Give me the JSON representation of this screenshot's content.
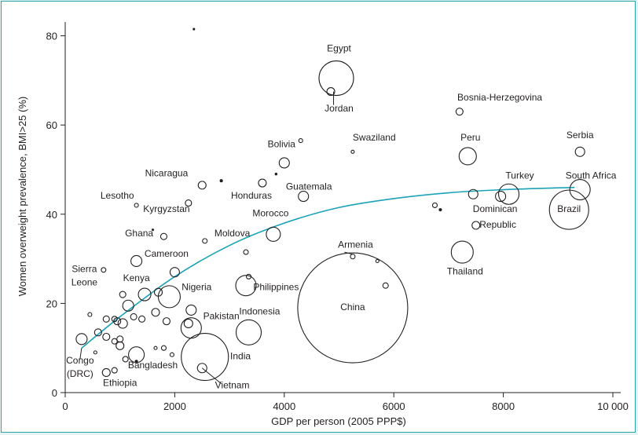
{
  "chart_data": {
    "type": "scatter",
    "title": "",
    "xlabel": "GDP per person (2005 PPP$)",
    "ylabel": "Women overweight prevalence, BMI>25 (%)",
    "xlim": [
      0,
      10000
    ],
    "ylim": [
      0,
      85
    ],
    "xticks": [
      0,
      2000,
      4000,
      6000,
      8000,
      10000
    ],
    "xtick_labels": [
      "0",
      "2000",
      "4000",
      "6000",
      "8000",
      "10 000"
    ],
    "yticks": [
      0,
      20,
      40,
      60,
      80
    ],
    "ytick_labels": [
      "0",
      "20",
      "40",
      "60",
      "80"
    ],
    "marker": "bubble (area proportional to population)",
    "colors": {
      "points": "#231f20",
      "trend": "#1aa3b8",
      "frame": "#2aa6a8"
    },
    "trend_line": {
      "x": [
        300,
        1000,
        2000,
        3000,
        4000,
        5000,
        6000,
        7000,
        8000,
        9300
      ],
      "y": [
        10,
        17,
        26,
        33,
        38,
        41.5,
        43.5,
        44.8,
        45.5,
        46
      ]
    },
    "points": [
      {
        "name": "Egypt",
        "x": 4950,
        "y": 70.5,
        "r": 22
      },
      {
        "name": "Jordan",
        "x": 4850,
        "y": 67.5,
        "r": 5
      },
      {
        "name": "Bosnia-Herzegovina",
        "x": 7200,
        "y": 63,
        "r": 4.5
      },
      {
        "name": "Peru",
        "x": 7350,
        "y": 53,
        "r": 11
      },
      {
        "name": "Serbia",
        "x": 9400,
        "y": 54,
        "r": 6
      },
      {
        "name": "Swaziland",
        "x": 5250,
        "y": 54,
        "r": 2
      },
      {
        "name": "Bolivia",
        "x": 4000,
        "y": 51.5,
        "r": 6.5
      },
      {
        "name": "Nicaragua",
        "x": 2500,
        "y": 46.5,
        "r": 5
      },
      {
        "name": "Honduras",
        "x": 3600,
        "y": 47,
        "r": 5
      },
      {
        "name": "Guatemala",
        "x": 4350,
        "y": 44,
        "r": 6.5
      },
      {
        "name": "Lesotho",
        "x": 1300,
        "y": 42,
        "r": 2.5
      },
      {
        "name": "Turkey",
        "x": 8100,
        "y": 44.5,
        "r": 13
      },
      {
        "name": "South Africa",
        "x": 9400,
        "y": 45.5,
        "r": 13
      },
      {
        "name": "Brazil",
        "x": 9200,
        "y": 41,
        "r": 25
      },
      {
        "name": "Dominican Republic",
        "x": 7500,
        "y": 37.5,
        "r": 5
      },
      {
        "name": "Kyrgyzstan",
        "x": 1800,
        "y": 35,
        "r": 4
      },
      {
        "name": "Moldova",
        "x": 2550,
        "y": 34,
        "r": 3
      },
      {
        "name": "Morocco",
        "x": 3800,
        "y": 35.5,
        "r": 9
      },
      {
        "name": "Armenia",
        "x": 5250,
        "y": 30.5,
        "r": 3
      },
      {
        "name": "Thailand",
        "x": 7250,
        "y": 31.5,
        "r": 14
      },
      {
        "name": "Ghana",
        "x": 1300,
        "y": 29.5,
        "r": 7
      },
      {
        "name": "Cameroon",
        "x": 2000,
        "y": 27,
        "r": 6
      },
      {
        "name": "Sierra Leone",
        "x": 700,
        "y": 27.5,
        "r": 3
      },
      {
        "name": "Philippines",
        "x": 3300,
        "y": 24,
        "r": 13
      },
      {
        "name": "Kenya",
        "x": 1450,
        "y": 22,
        "r": 8
      },
      {
        "name": "Nigeria",
        "x": 1900,
        "y": 21.5,
        "r": 14
      },
      {
        "name": "China",
        "x": 5250,
        "y": 19,
        "r": 70
      },
      {
        "name": "Pakistan",
        "x": 2300,
        "y": 14.5,
        "r": 13
      },
      {
        "name": "Indonesia",
        "x": 3350,
        "y": 13.5,
        "r": 16
      },
      {
        "name": "India",
        "x": 2550,
        "y": 8,
        "r": 30
      },
      {
        "name": "Vietnam",
        "x": 2500,
        "y": 5.5,
        "r": 6
      },
      {
        "name": "Bangladesh",
        "x": 1300,
        "y": 8.5,
        "r": 10
      },
      {
        "name": "Congo (DRC)",
        "x": 300,
        "y": 12,
        "r": 7
      },
      {
        "name": "Ethiopia",
        "x": 750,
        "y": 4.5,
        "r": 5
      },
      {
        "name": "",
        "x": 4300,
        "y": 56.5,
        "r": 2.5
      },
      {
        "name": "",
        "x": 2850,
        "y": 47.5,
        "r": 1.5
      },
      {
        "name": "",
        "x": 3850,
        "y": 49,
        "r": 1.2
      },
      {
        "name": "",
        "x": 2250,
        "y": 42.5,
        "r": 4
      },
      {
        "name": "",
        "x": 6750,
        "y": 42,
        "r": 3
      },
      {
        "name": "",
        "x": 7450,
        "y": 44.5,
        "r": 6
      },
      {
        "name": "",
        "x": 7950,
        "y": 44,
        "r": 6.5
      },
      {
        "name": "",
        "x": 6850,
        "y": 41,
        "r": 1.5
      },
      {
        "name": "",
        "x": 1600,
        "y": 36.5,
        "r": 1
      },
      {
        "name": "",
        "x": 3300,
        "y": 31.5,
        "r": 3
      },
      {
        "name": "",
        "x": 5700,
        "y": 29.5,
        "r": 2
      },
      {
        "name": "",
        "x": 5850,
        "y": 24,
        "r": 3.5
      },
      {
        "name": "",
        "x": 3350,
        "y": 26,
        "r": 3
      },
      {
        "name": "",
        "x": 1700,
        "y": 22.5,
        "r": 5
      },
      {
        "name": "",
        "x": 1050,
        "y": 22,
        "r": 4
      },
      {
        "name": "",
        "x": 1150,
        "y": 19.5,
        "r": 7
      },
      {
        "name": "",
        "x": 1650,
        "y": 18,
        "r": 5
      },
      {
        "name": "",
        "x": 2300,
        "y": 18.5,
        "r": 6.5
      },
      {
        "name": "",
        "x": 450,
        "y": 17.5,
        "r": 2.5
      },
      {
        "name": "",
        "x": 750,
        "y": 16.5,
        "r": 4
      },
      {
        "name": "",
        "x": 900,
        "y": 16.5,
        "r": 3.5
      },
      {
        "name": "",
        "x": 950,
        "y": 16,
        "r": 4.5
      },
      {
        "name": "",
        "x": 1050,
        "y": 15.5,
        "r": 6
      },
      {
        "name": "",
        "x": 1250,
        "y": 17,
        "r": 4
      },
      {
        "name": "",
        "x": 1400,
        "y": 16.5,
        "r": 4
      },
      {
        "name": "",
        "x": 600,
        "y": 13.5,
        "r": 4.5
      },
      {
        "name": "",
        "x": 750,
        "y": 12.5,
        "r": 4.5
      },
      {
        "name": "",
        "x": 900,
        "y": 11.5,
        "r": 3.5
      },
      {
        "name": "",
        "x": 1000,
        "y": 12,
        "r": 4
      },
      {
        "name": "",
        "x": 1000,
        "y": 10.5,
        "r": 5
      },
      {
        "name": "",
        "x": 1850,
        "y": 16,
        "r": 4.5
      },
      {
        "name": "",
        "x": 2250,
        "y": 15.5,
        "r": 5.5
      },
      {
        "name": "",
        "x": 1100,
        "y": 7.5,
        "r": 3.5
      },
      {
        "name": "",
        "x": 900,
        "y": 5,
        "r": 3.5
      },
      {
        "name": "",
        "x": 1300,
        "y": 7,
        "r": 1.5
      },
      {
        "name": "",
        "x": 1650,
        "y": 10,
        "r": 2
      },
      {
        "name": "",
        "x": 1800,
        "y": 10,
        "r": 3
      },
      {
        "name": "",
        "x": 1950,
        "y": 8.5,
        "r": 2.5
      },
      {
        "name": "",
        "x": 550,
        "y": 9,
        "r": 2
      },
      {
        "name": "",
        "x": 2350,
        "y": 81.5,
        "r": 1
      }
    ],
    "labels": [
      {
        "text": "Egypt",
        "x": 5000,
        "y": 76.5,
        "anchor": "middle"
      },
      {
        "text": "Jordan",
        "x": 5000,
        "y": 63,
        "anchor": "middle"
      },
      {
        "text": "Bosnia-Herzegovina",
        "x": 7160,
        "y": 65.5,
        "anchor": "start"
      },
      {
        "text": "Peru",
        "x": 7400,
        "y": 56.5,
        "anchor": "middle"
      },
      {
        "text": "Serbia",
        "x": 9400,
        "y": 57,
        "anchor": "middle"
      },
      {
        "text": "Swaziland",
        "x": 5250,
        "y": 56.5,
        "anchor": "start"
      },
      {
        "text": "Bolivia",
        "x": 3950,
        "y": 55,
        "anchor": "middle"
      },
      {
        "text": "Nicaragua",
        "x": 1850,
        "y": 48.5,
        "anchor": "middle"
      },
      {
        "text": "Honduras",
        "x": 3400,
        "y": 43.5,
        "anchor": "middle"
      },
      {
        "text": "Guatemala",
        "x": 4450,
        "y": 45.5,
        "anchor": "middle"
      },
      {
        "text": "Lesotho",
        "x": 950,
        "y": 43.5,
        "anchor": "middle"
      },
      {
        "text": "Turkey",
        "x": 8300,
        "y": 48,
        "anchor": "middle"
      },
      {
        "text": "South Africa",
        "x": 9600,
        "y": 48,
        "anchor": "middle"
      },
      {
        "text": "Brazil",
        "x": 9200,
        "y": 40.5,
        "anchor": "middle"
      },
      {
        "text": "Dominican",
        "x": 7850,
        "y": 40.5,
        "anchor": "middle"
      },
      {
        "text": "Republic",
        "x": 7900,
        "y": 37,
        "anchor": "middle"
      },
      {
        "text": "Kyrgyzstan",
        "x": 1850,
        "y": 40.5,
        "anchor": "middle"
      },
      {
        "text": "Moldova",
        "x": 3050,
        "y": 35,
        "anchor": "middle"
      },
      {
        "text": "Morocco",
        "x": 3750,
        "y": 39.5,
        "anchor": "middle"
      },
      {
        "text": "Armenia",
        "x": 5300,
        "y": 32.5,
        "anchor": "middle"
      },
      {
        "text": "Thailand",
        "x": 7300,
        "y": 26.5,
        "anchor": "middle"
      },
      {
        "text": "Ghana",
        "x": 1350,
        "y": 35,
        "anchor": "middle"
      },
      {
        "text": "Cameroon",
        "x": 1850,
        "y": 30.5,
        "anchor": "middle"
      },
      {
        "text": "Sierra",
        "x": 350,
        "y": 27,
        "anchor": "middle"
      },
      {
        "text": "Leone",
        "x": 350,
        "y": 24,
        "anchor": "middle"
      },
      {
        "text": "Philippines",
        "x": 3850,
        "y": 23,
        "anchor": "middle"
      },
      {
        "text": "Kenya",
        "x": 1300,
        "y": 25,
        "anchor": "middle"
      },
      {
        "text": "Nigeria",
        "x": 2400,
        "y": 23,
        "anchor": "middle"
      },
      {
        "text": "China",
        "x": 5250,
        "y": 18.5,
        "anchor": "middle"
      },
      {
        "text": "Pakistan",
        "x": 2850,
        "y": 16.5,
        "anchor": "middle"
      },
      {
        "text": "Indonesia",
        "x": 3550,
        "y": 17.5,
        "anchor": "middle"
      },
      {
        "text": "India",
        "x": 3200,
        "y": 7.5,
        "anchor": "middle"
      },
      {
        "text": "Vietnam",
        "x": 3050,
        "y": 1,
        "anchor": "middle"
      },
      {
        "text": "Bangladesh",
        "x": 1600,
        "y": 5.5,
        "anchor": "middle"
      },
      {
        "text": "Congo",
        "x": 270,
        "y": 6.5,
        "anchor": "middle"
      },
      {
        "text": "(DRC)",
        "x": 270,
        "y": 3.5,
        "anchor": "middle"
      },
      {
        "text": "Ethiopia",
        "x": 1000,
        "y": 1.5,
        "anchor": "middle"
      }
    ],
    "leaders": [
      {
        "from": [
          4900,
          67.5
        ],
        "to": [
          4900,
          64.5
        ]
      },
      {
        "from": [
          2500,
          5.5
        ],
        "to": [
          2850,
          2
        ]
      },
      {
        "from": [
          300,
          10
        ],
        "to": [
          270,
          7.5
        ]
      },
      {
        "from": [
          5100,
          31.5
        ],
        "to": [
          5250,
          31
        ]
      }
    ]
  }
}
